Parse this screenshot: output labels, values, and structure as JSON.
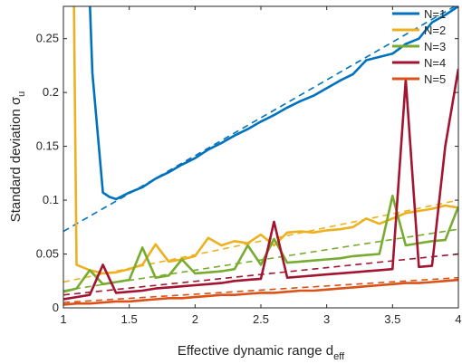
{
  "chart_data": {
    "type": "line",
    "title": "",
    "xlabel": "Effective dynamic range d",
    "xlabel_sub": "eff",
    "ylabel": "Standard deviation σ",
    "ylabel_sub": "u",
    "xlim": [
      1,
      4
    ],
    "ylim": [
      0,
      0.28
    ],
    "xticks": [
      "1",
      "1.5",
      "2",
      "2.5",
      "3",
      "3.5",
      "4"
    ],
    "xtick_values": [
      1,
      1.5,
      2,
      2.5,
      3,
      3.5,
      4
    ],
    "yticks": [
      "0",
      "0.05",
      "0.1",
      "0.15",
      "0.2",
      "0.25"
    ],
    "ytick_values": [
      0,
      0.05,
      0.1,
      0.15,
      0.2,
      0.25
    ],
    "grid": false,
    "legend_position": "top-right",
    "series": [
      {
        "name": "N=1",
        "color": "#0072BD",
        "x": [
          1.2,
          1.22,
          1.3,
          1.35,
          1.4,
          1.5,
          1.6,
          1.7,
          1.8,
          1.9,
          2.0,
          2.1,
          2.2,
          2.3,
          2.4,
          2.5,
          2.6,
          2.7,
          2.8,
          2.9,
          3.0,
          3.1,
          3.2,
          3.3,
          3.4,
          3.5,
          3.6,
          3.7,
          3.8,
          3.9,
          4.0
        ],
        "values": [
          0.285,
          0.218,
          0.107,
          0.103,
          0.101,
          0.107,
          0.112,
          0.12,
          0.126,
          0.133,
          0.139,
          0.147,
          0.153,
          0.16,
          0.166,
          0.173,
          0.179,
          0.186,
          0.192,
          0.197,
          0.204,
          0.211,
          0.217,
          0.23,
          0.233,
          0.236,
          0.245,
          0.25,
          0.265,
          0.272,
          0.28
        ],
        "trend": [
          [
            1,
            0.071
          ],
          [
            4,
            0.282
          ]
        ]
      },
      {
        "name": "N=2",
        "color": "#EDB120",
        "x": [
          1.08,
          1.1,
          1.2,
          1.3,
          1.4,
          1.5,
          1.6,
          1.7,
          1.8,
          1.9,
          2.0,
          2.1,
          2.2,
          2.3,
          2.4,
          2.5,
          2.6,
          2.7,
          2.8,
          2.9,
          3.0,
          3.1,
          3.2,
          3.3,
          3.4,
          3.5,
          3.6,
          3.7,
          3.8,
          3.9,
          4.0
        ],
        "values": [
          0.285,
          0.04,
          0.035,
          0.032,
          0.033,
          0.036,
          0.04,
          0.059,
          0.043,
          0.045,
          0.048,
          0.065,
          0.058,
          0.062,
          0.06,
          0.068,
          0.058,
          0.07,
          0.071,
          0.07,
          0.072,
          0.073,
          0.075,
          0.083,
          0.078,
          0.083,
          0.088,
          0.09,
          0.092,
          0.095,
          0.093
        ],
        "trend": [
          [
            1,
            0.024
          ],
          [
            4,
            0.1
          ]
        ]
      },
      {
        "name": "N=3",
        "color": "#77AC30",
        "x": [
          1.0,
          1.1,
          1.2,
          1.3,
          1.4,
          1.5,
          1.6,
          1.7,
          1.8,
          1.9,
          2.0,
          2.1,
          2.2,
          2.3,
          2.4,
          2.5,
          2.6,
          2.7,
          2.8,
          2.9,
          3.0,
          3.1,
          3.2,
          3.3,
          3.4,
          3.5,
          3.6,
          3.7,
          3.8,
          3.9,
          4.0
        ],
        "values": [
          0.015,
          0.018,
          0.035,
          0.022,
          0.024,
          0.026,
          0.056,
          0.028,
          0.03,
          0.045,
          0.032,
          0.033,
          0.034,
          0.036,
          0.058,
          0.04,
          0.064,
          0.042,
          0.043,
          0.044,
          0.045,
          0.046,
          0.048,
          0.049,
          0.05,
          0.104,
          0.058,
          0.06,
          0.062,
          0.063,
          0.094
        ],
        "trend": [
          [
            1,
            0.016
          ],
          [
            4,
            0.073
          ]
        ]
      },
      {
        "name": "N=4",
        "color": "#A2142F",
        "x": [
          1.0,
          1.1,
          1.2,
          1.3,
          1.4,
          1.5,
          1.6,
          1.7,
          1.8,
          1.9,
          2.0,
          2.1,
          2.2,
          2.3,
          2.4,
          2.5,
          2.6,
          2.7,
          2.8,
          2.9,
          3.0,
          3.1,
          3.2,
          3.3,
          3.4,
          3.5,
          3.6,
          3.7,
          3.8,
          3.9,
          4.0
        ],
        "values": [
          0.008,
          0.01,
          0.012,
          0.04,
          0.014,
          0.015,
          0.016,
          0.018,
          0.019,
          0.02,
          0.021,
          0.022,
          0.023,
          0.025,
          0.026,
          0.027,
          0.08,
          0.028,
          0.029,
          0.03,
          0.031,
          0.032,
          0.033,
          0.034,
          0.035,
          0.036,
          0.212,
          0.038,
          0.039,
          0.15,
          0.222
        ],
        "trend": [
          [
            1,
            0.012
          ],
          [
            4,
            0.05
          ]
        ]
      },
      {
        "name": "N=5",
        "color": "#D95319",
        "x": [
          1.0,
          1.1,
          1.2,
          1.3,
          1.4,
          1.5,
          1.6,
          1.7,
          1.8,
          1.9,
          2.0,
          2.1,
          2.2,
          2.3,
          2.4,
          2.5,
          2.6,
          2.7,
          2.8,
          2.9,
          3.0,
          3.1,
          3.2,
          3.3,
          3.4,
          3.5,
          3.6,
          3.7,
          3.8,
          3.9,
          4.0
        ],
        "values": [
          0.003,
          0.004,
          0.004,
          0.005,
          0.006,
          0.006,
          0.007,
          0.008,
          0.009,
          0.009,
          0.01,
          0.011,
          0.012,
          0.012,
          0.013,
          0.014,
          0.014,
          0.015,
          0.016,
          0.016,
          0.017,
          0.018,
          0.019,
          0.02,
          0.021,
          0.022,
          0.023,
          0.023,
          0.024,
          0.025,
          0.026
        ],
        "trend": [
          [
            1,
            0.005
          ],
          [
            4,
            0.028
          ]
        ]
      }
    ]
  }
}
